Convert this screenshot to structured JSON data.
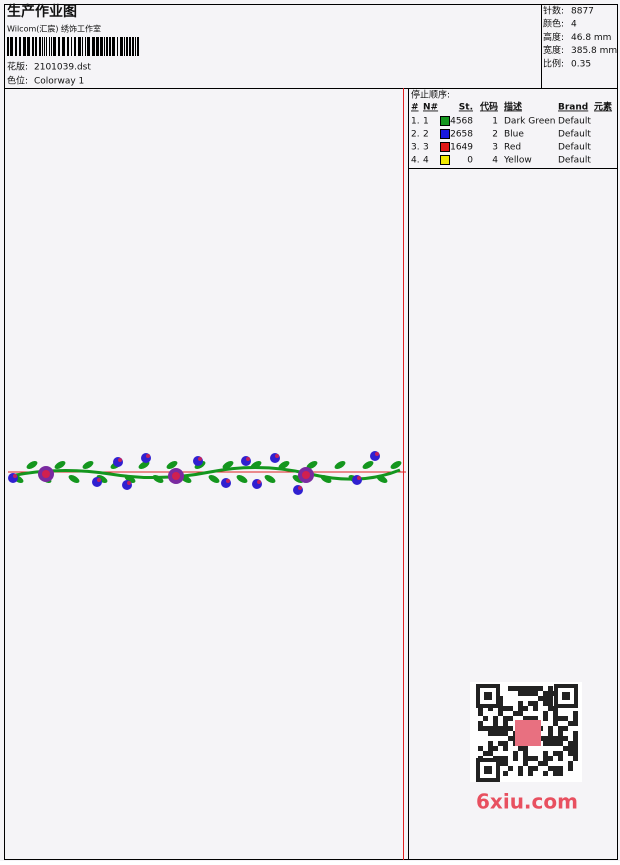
{
  "header": {
    "title": "生产作业图",
    "subtitle": "Wilcom(汇宸) 绣饰工作室",
    "design_label": "花版:",
    "design": "2101039.dst",
    "colorway_label": "色位:",
    "colorway": "Colorway 1"
  },
  "info": [
    {
      "label": "针数:",
      "value": "8877"
    },
    {
      "label": "颜色:",
      "value": "4"
    },
    {
      "label": "高度:",
      "value": "46.8 mm"
    },
    {
      "label": "宽度:",
      "value": "385.8 mm"
    },
    {
      "label": "比例:",
      "value": "0.35"
    }
  ],
  "stop_sequence": {
    "title": "停止顺序:",
    "columns": [
      "#",
      "N#",
      "St.",
      "代码",
      "描述",
      "Brand",
      "元素"
    ],
    "rows": [
      {
        "index": "1.",
        "needle": 1,
        "color": "#14961e",
        "stitches": 4568,
        "code": 1,
        "description": "Dark Green",
        "brand": "Default"
      },
      {
        "index": "2.",
        "needle": 2,
        "color": "#1818e0",
        "stitches": 2658,
        "code": 2,
        "description": "Blue",
        "brand": "Default"
      },
      {
        "index": "3.",
        "needle": 3,
        "color": "#e01818",
        "stitches": 1649,
        "code": 3,
        "description": "Red",
        "brand": "Default"
      },
      {
        "index": "4.",
        "needle": 4,
        "color": "#f0e800",
        "stitches": 0,
        "code": 4,
        "description": "Yellow",
        "brand": "Default"
      }
    ]
  },
  "watermark": "6xiu.com"
}
